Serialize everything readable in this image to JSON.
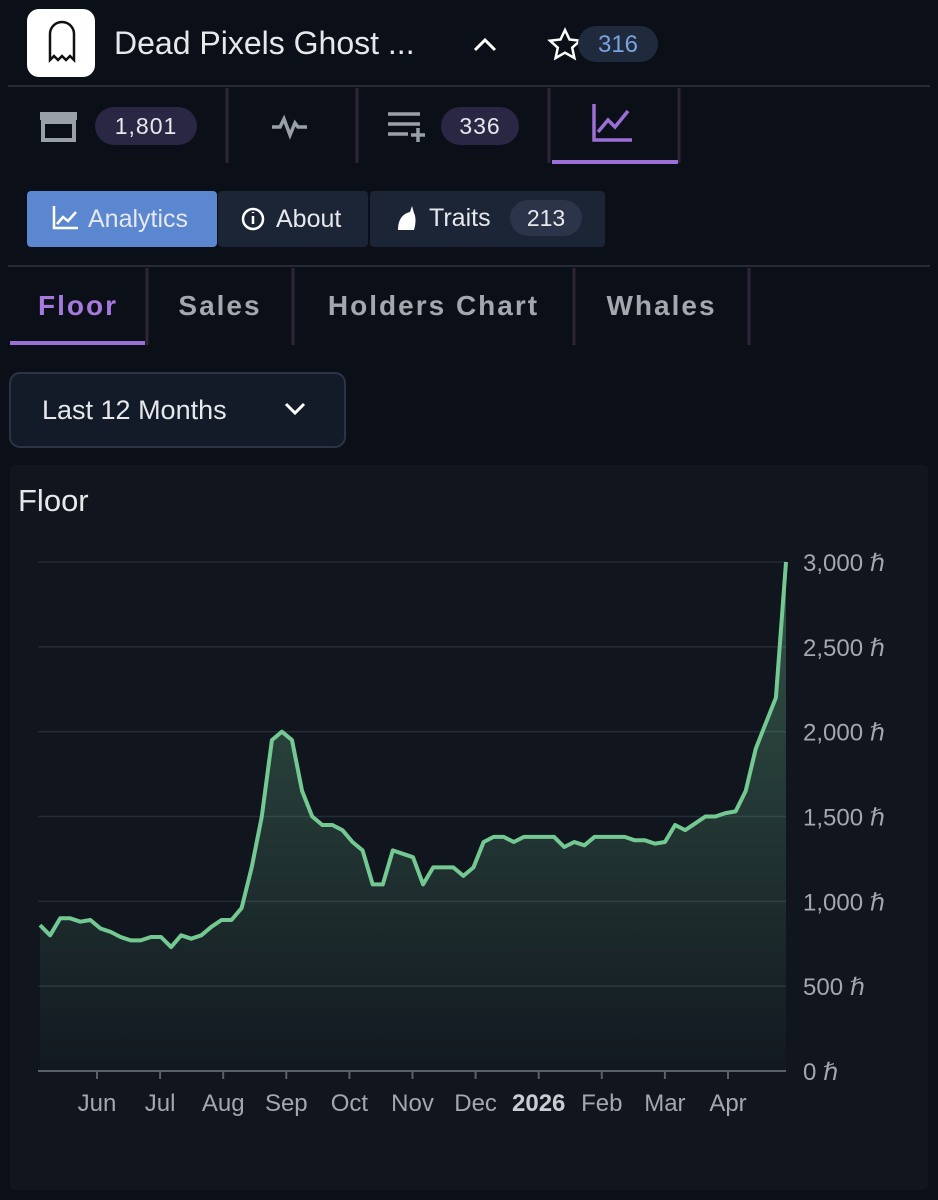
{
  "header": {
    "title": "Dead Pixels Ghost ...",
    "favorites": "316"
  },
  "toolbar": {
    "counts": [
      "1,801",
      "336"
    ]
  },
  "nav": {
    "items": [
      "Analytics",
      "About",
      "Traits"
    ],
    "traits_count": "213"
  },
  "subtabs": [
    "Floor",
    "Sales",
    "Holders Chart",
    "Whales"
  ],
  "range": "Last 12 Months",
  "chart_data": {
    "type": "line",
    "title": "Floor",
    "x_labels": [
      "Jun",
      "Jul",
      "Aug",
      "Sep",
      "Oct",
      "Nov",
      "Dec",
      "2026",
      "Feb",
      "Mar",
      "Apr"
    ],
    "values": [
      860,
      800,
      900,
      900,
      880,
      890,
      840,
      820,
      790,
      770,
      770,
      790,
      790,
      730,
      800,
      780,
      800,
      850,
      890,
      890,
      960,
      1200,
      1500,
      1950,
      2000,
      1950,
      1650,
      1500,
      1450,
      1450,
      1420,
      1350,
      1300,
      1100,
      1100,
      1300,
      1280,
      1260,
      1100,
      1200,
      1200,
      1200,
      1150,
      1200,
      1350,
      1380,
      1380,
      1350,
      1380,
      1380,
      1380,
      1380,
      1320,
      1350,
      1330,
      1380,
      1380,
      1380,
      1380,
      1360,
      1360,
      1340,
      1350,
      1450,
      1420,
      1460,
      1500,
      1500,
      1520,
      1530,
      1650,
      1900,
      2050,
      2200,
      3000
    ],
    "color": "#74c993",
    "ylim": [
      0,
      3000
    ],
    "yticks": [
      {
        "value": 0,
        "label": "0 ℏ"
      },
      {
        "value": 500,
        "label": "500 ℏ"
      },
      {
        "value": 1000,
        "label": "1,000 ℏ"
      },
      {
        "value": 1500,
        "label": "1,500 ℏ"
      },
      {
        "value": 2000,
        "label": "2,000 ℏ"
      },
      {
        "value": 2500,
        "label": "2,500 ℏ"
      },
      {
        "value": 3000,
        "label": "3,000 ℏ"
      }
    ],
    "grid": true
  }
}
